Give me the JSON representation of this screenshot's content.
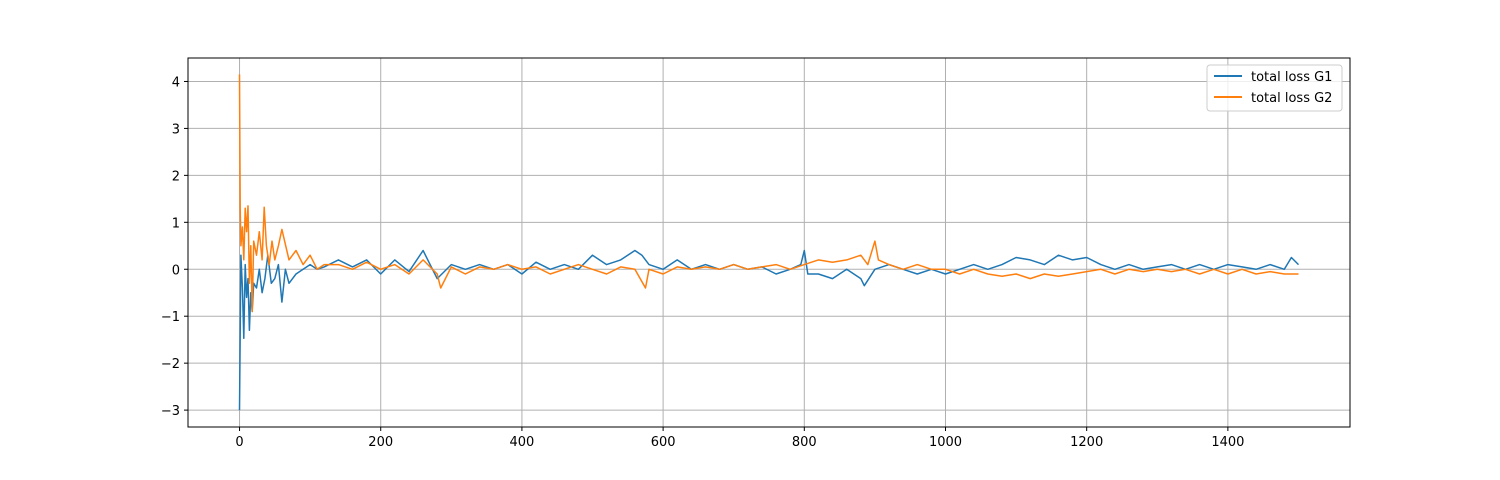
{
  "chart_data": {
    "type": "line",
    "title": "",
    "xlabel": "",
    "ylabel": "",
    "xlim": [
      -73,
      1573
    ],
    "ylim": [
      -3.36,
      4.5
    ],
    "x_ticks": [
      0,
      200,
      400,
      600,
      800,
      1000,
      1200,
      1400
    ],
    "y_ticks": [
      -3,
      -2,
      -1,
      0,
      1,
      2,
      3,
      4
    ],
    "y_tick_labels": [
      "−3",
      "−2",
      "−1",
      "0",
      "1",
      "2",
      "3",
      "4"
    ],
    "grid": true,
    "legend_position": "top-right",
    "series": [
      {
        "name": "total loss G1",
        "color": "#1f77b4",
        "x": [
          0,
          2,
          4,
          6,
          8,
          10,
          12,
          14,
          16,
          18,
          20,
          24,
          28,
          32,
          36,
          40,
          45,
          50,
          55,
          60,
          65,
          70,
          80,
          90,
          100,
          110,
          120,
          140,
          160,
          180,
          200,
          220,
          240,
          260,
          270,
          280,
          300,
          320,
          340,
          360,
          380,
          400,
          420,
          440,
          460,
          480,
          500,
          520,
          540,
          560,
          570,
          580,
          600,
          620,
          640,
          660,
          680,
          700,
          720,
          740,
          760,
          780,
          795,
          800,
          805,
          820,
          840,
          860,
          880,
          885,
          900,
          920,
          940,
          960,
          980,
          1000,
          1020,
          1040,
          1060,
          1080,
          1100,
          1120,
          1140,
          1160,
          1180,
          1200,
          1220,
          1240,
          1260,
          1280,
          1300,
          1320,
          1340,
          1360,
          1380,
          1400,
          1420,
          1440,
          1460,
          1480,
          1490,
          1500
        ],
        "y": [
          -3.0,
          0.3,
          -0.4,
          -1.47,
          0.1,
          -0.6,
          -0.2,
          -1.3,
          -0.5,
          -0.9,
          -0.3,
          -0.4,
          0.0,
          -0.5,
          -0.2,
          0.3,
          -0.3,
          -0.2,
          0.1,
          -0.7,
          0.0,
          -0.3,
          -0.1,
          0.0,
          0.1,
          0.0,
          0.05,
          0.2,
          0.05,
          0.2,
          -0.1,
          0.2,
          -0.05,
          0.4,
          0.1,
          -0.2,
          0.1,
          0.0,
          0.1,
          0.0,
          0.1,
          -0.1,
          0.15,
          0.0,
          0.1,
          0.0,
          0.3,
          0.1,
          0.2,
          0.4,
          0.3,
          0.1,
          0.0,
          0.2,
          0.0,
          0.1,
          0.0,
          0.1,
          0.0,
          0.05,
          -0.1,
          0.0,
          0.1,
          0.4,
          -0.1,
          -0.1,
          -0.2,
          0.0,
          -0.2,
          -0.35,
          0.0,
          0.1,
          0.0,
          -0.1,
          0.0,
          -0.1,
          0.0,
          0.1,
          0.0,
          0.1,
          0.25,
          0.2,
          0.1,
          0.3,
          0.2,
          0.25,
          0.1,
          0.0,
          0.1,
          0.0,
          0.05,
          0.1,
          0.0,
          0.1,
          0.0,
          0.1,
          0.05,
          0.0,
          0.1,
          0.0,
          0.25,
          0.1
        ]
      },
      {
        "name": "total loss G2",
        "color": "#ff7f0e",
        "x": [
          0,
          1,
          2,
          4,
          6,
          8,
          10,
          12,
          14,
          16,
          18,
          20,
          24,
          28,
          32,
          35,
          38,
          42,
          46,
          50,
          55,
          60,
          70,
          80,
          90,
          100,
          110,
          120,
          140,
          160,
          180,
          200,
          220,
          240,
          260,
          280,
          285,
          300,
          320,
          340,
          360,
          380,
          400,
          420,
          440,
          460,
          480,
          500,
          520,
          540,
          560,
          575,
          580,
          600,
          620,
          640,
          660,
          680,
          700,
          720,
          740,
          760,
          780,
          800,
          820,
          840,
          860,
          880,
          890,
          900,
          905,
          920,
          940,
          960,
          980,
          1000,
          1020,
          1040,
          1060,
          1080,
          1100,
          1120,
          1140,
          1160,
          1180,
          1200,
          1220,
          1240,
          1260,
          1280,
          1300,
          1320,
          1340,
          1360,
          1380,
          1400,
          1420,
          1440,
          1460,
          1480,
          1500
        ],
        "y": [
          4.15,
          1.3,
          0.5,
          0.9,
          0.2,
          1.3,
          0.8,
          1.35,
          -0.3,
          0.5,
          -0.9,
          0.6,
          0.3,
          0.8,
          0.2,
          1.32,
          0.5,
          0.1,
          0.6,
          0.2,
          0.5,
          0.85,
          0.2,
          0.4,
          0.1,
          0.3,
          0.0,
          0.1,
          0.1,
          0.0,
          0.15,
          0.0,
          0.1,
          -0.1,
          0.2,
          -0.1,
          -0.4,
          0.05,
          -0.1,
          0.05,
          0.0,
          0.1,
          0.0,
          0.05,
          -0.1,
          0.0,
          0.1,
          0.0,
          -0.1,
          0.05,
          0.0,
          -0.4,
          0.0,
          -0.1,
          0.05,
          0.0,
          0.05,
          0.0,
          0.1,
          0.0,
          0.05,
          0.1,
          0.0,
          0.1,
          0.2,
          0.15,
          0.2,
          0.3,
          0.1,
          0.6,
          0.2,
          0.1,
          0.0,
          0.1,
          0.0,
          0.0,
          -0.1,
          0.0,
          -0.1,
          -0.15,
          -0.1,
          -0.2,
          -0.1,
          -0.15,
          -0.1,
          -0.05,
          0.0,
          -0.1,
          0.0,
          -0.05,
          0.0,
          -0.05,
          0.0,
          -0.1,
          0.0,
          -0.1,
          0.0,
          -0.1,
          -0.05,
          -0.1,
          -0.1
        ]
      }
    ]
  }
}
